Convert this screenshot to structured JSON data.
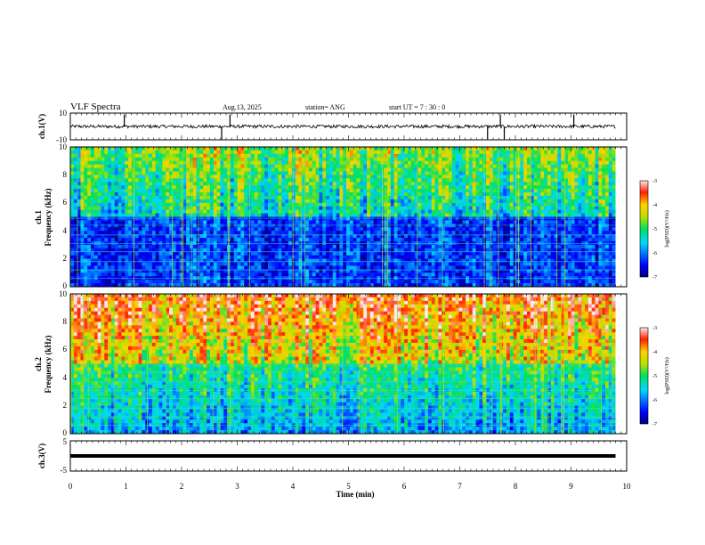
{
  "header": {
    "title": "VLF Spectra",
    "date": "Aug.13, 2025",
    "station": "station= ANG",
    "start_ut": "start UT =   7 : 30 : 0"
  },
  "chart_data": [
    {
      "type": "line",
      "panel": "ch1-waveform",
      "ylabel": "ch.1(V)",
      "ylim": [
        -10,
        10
      ],
      "y_ticks": [
        "10",
        "-10"
      ],
      "xlim": [
        0,
        10
      ],
      "data_end_min": 9.8,
      "baseline": 0,
      "noise_amplitude": 1.2,
      "spikes_min": [
        0.97,
        2.72,
        2.87,
        7.5,
        7.73,
        7.8,
        9.05
      ]
    },
    {
      "type": "heatmap",
      "panel": "ch1-spectrogram",
      "ylabel": "ch.1",
      "ylabel2": "Frequency (kHz)",
      "ylim": [
        0,
        10
      ],
      "y_ticks": [
        "0",
        "2",
        "4",
        "6",
        "8",
        "10"
      ],
      "xlim": [
        0,
        10
      ],
      "data_end_min": 9.8,
      "colorbar": {
        "range": [
          -7,
          -3
        ],
        "ticks": [
          "-3",
          "-4",
          "-5",
          "-6",
          "-7"
        ],
        "label": "log(PSD)(V²/Hz)"
      }
    },
    {
      "type": "heatmap",
      "panel": "ch2-spectrogram",
      "ylabel": "ch.2",
      "ylabel2": "Frequency (kHz)",
      "ylim": [
        0,
        10
      ],
      "y_ticks": [
        "0",
        "2",
        "4",
        "6",
        "8",
        "10"
      ],
      "xlim": [
        0,
        10
      ],
      "data_end_min": 9.8,
      "colorbar": {
        "range": [
          -7,
          -3
        ],
        "ticks": [
          "-3",
          "-4",
          "-5",
          "-6",
          "-7"
        ],
        "label": "log(PSD)(V²/Hz)"
      }
    },
    {
      "type": "line",
      "panel": "ch3-waveform",
      "ylabel": "ch.3(V)",
      "ylim": [
        -5,
        5
      ],
      "y_ticks": [
        "5",
        "-5"
      ],
      "xlim": [
        0,
        10
      ],
      "data_end_min": 9.8,
      "constant_value": 0
    }
  ],
  "xaxis": {
    "label": "Time (min)",
    "ticks": [
      "0",
      "1",
      "2",
      "3",
      "4",
      "5",
      "6",
      "7",
      "8",
      "9",
      "10"
    ]
  }
}
